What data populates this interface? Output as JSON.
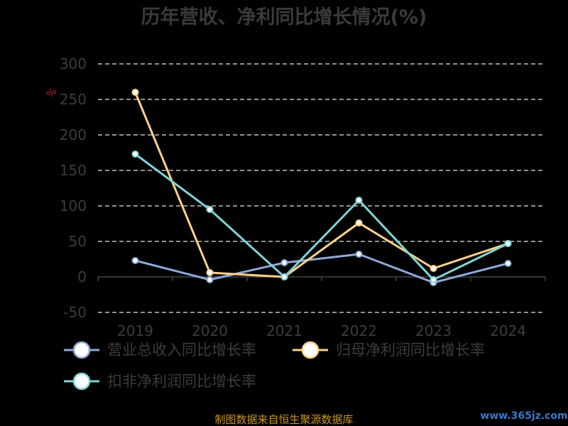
{
  "chart_data": {
    "type": "line",
    "title": "历年营收、净利同比增长情况(%)",
    "ylabel": "%",
    "categories": [
      "2019",
      "2020",
      "2021",
      "2022",
      "2023",
      "2024"
    ],
    "ylim": [
      -50,
      300
    ],
    "yticks": [
      300,
      250,
      200,
      150,
      100,
      50,
      0,
      -50
    ],
    "grid": true,
    "legend_placement": "bottom",
    "series": [
      {
        "name": "营业总收入同比增长率",
        "color": "#8fa8d8",
        "values": [
          23,
          -4,
          20,
          32,
          -8,
          19
        ]
      },
      {
        "name": "归母净利润同比增长率",
        "color": "#fcd089",
        "values": [
          260,
          6,
          0,
          76,
          12,
          47
        ]
      },
      {
        "name": "扣非净利润同比增长率",
        "color": "#7fd3d5",
        "values": [
          173,
          95,
          0,
          108,
          -4,
          47
        ]
      }
    ]
  },
  "footer": {
    "source": "制图数据来自恒生聚源数据库",
    "watermark": "www.365jz.com"
  }
}
